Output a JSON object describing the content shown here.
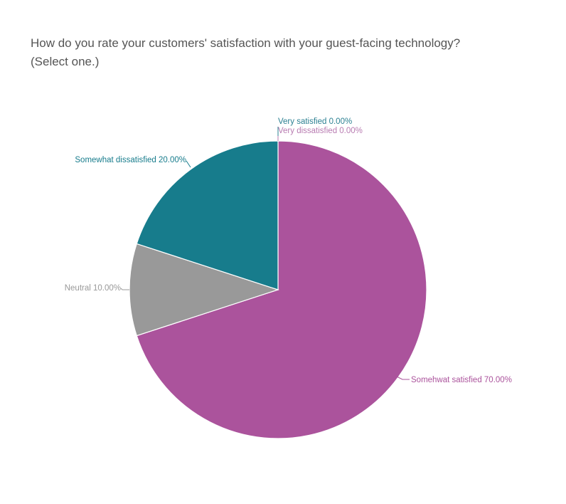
{
  "chart_data": {
    "type": "pie",
    "title_lines": [
      "How do you rate your customers' satisfaction with your guest-facing technology?",
      "(Select one.)"
    ],
    "slices": [
      {
        "label": "Very satisfied",
        "value": 0.0,
        "display": "Very satisfied 0.00%",
        "color": "#2b8092"
      },
      {
        "label": "Somehwat satisfied",
        "value": 70.0,
        "display": "Somehwat satisfied 70.00%",
        "color": "#ab539c"
      },
      {
        "label": "Neutral",
        "value": 10.0,
        "display": "Neutral 10.00%",
        "color": "#999999"
      },
      {
        "label": "Somewhat dissatisfied",
        "value": 20.0,
        "display": "Somewhat dissatisfied 20.00%",
        "color": "#177c8c"
      },
      {
        "label": "Very dissatisfied",
        "value": 0.0,
        "display": "Very dissatisfied 0.00%",
        "color": "#b87bb1"
      }
    ],
    "legend": "none"
  }
}
